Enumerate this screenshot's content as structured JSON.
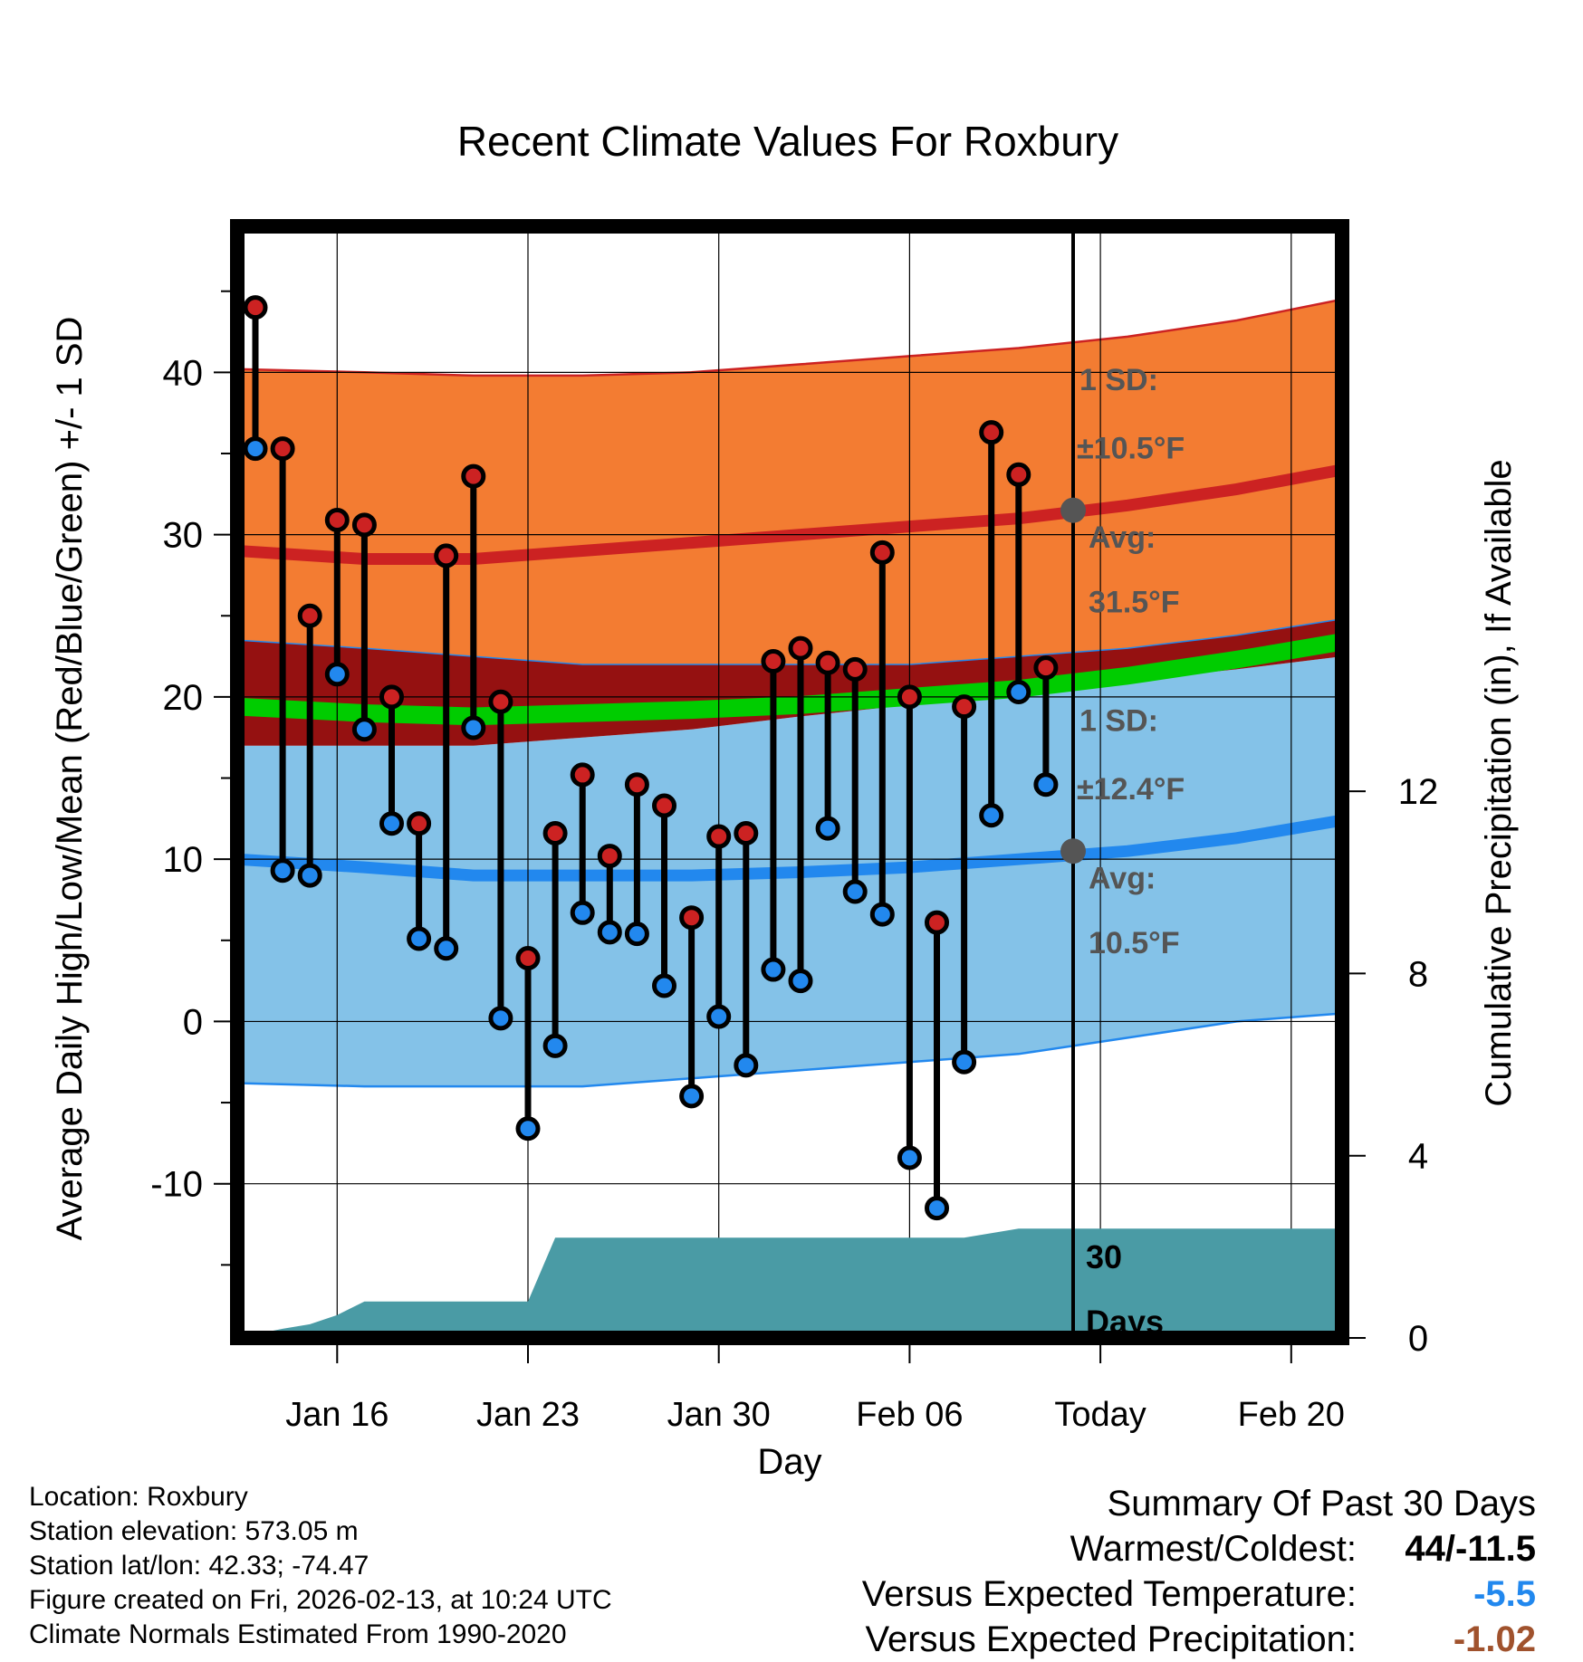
{
  "chart_data": {
    "type": "line",
    "title": "Recent Climate Values For Roxbury",
    "xlabel": "Day",
    "ylabel": "Average Daily High/Low/Mean (Red/Blue/Green) +/- 1 SD",
    "y2label": "Cumulative Precipitation (in), If Available",
    "ylim": [
      -19.5,
      49
    ],
    "y2lim": [
      0,
      24.4
    ],
    "xlim": [
      0,
      41
    ],
    "today_index": 30,
    "x_ticks": [
      {
        "day": 3,
        "label": "Jan 16"
      },
      {
        "day": 10,
        "label": "Jan 23"
      },
      {
        "day": 17,
        "label": "Jan 30"
      },
      {
        "day": 24,
        "label": "Feb 06"
      },
      {
        "day": 31,
        "label": "Today"
      },
      {
        "day": 38,
        "label": "Feb 20"
      }
    ],
    "y_ticks": [
      -10,
      0,
      10,
      20,
      30,
      40
    ],
    "y2_ticks": [
      0,
      4,
      8,
      12
    ],
    "normals_days": [
      0,
      4,
      8,
      12,
      16,
      20,
      24,
      28,
      32,
      36,
      41
    ],
    "normal_high": [
      29.0,
      28.5,
      28.5,
      29.0,
      29.5,
      30.0,
      30.5,
      31.0,
      31.8,
      32.8,
      34.0
    ],
    "normal_high_plus_sd": [
      40.2,
      40.0,
      39.8,
      39.8,
      40.0,
      40.5,
      41.0,
      41.5,
      42.2,
      43.2,
      44.5
    ],
    "normal_high_minus_sd": [
      23.5,
      23.0,
      22.5,
      22.0,
      22.0,
      22.0,
      22.0,
      22.5,
      23.0,
      23.8,
      24.8
    ],
    "normal_mean": [
      19.4,
      19.0,
      18.8,
      19.0,
      19.2,
      19.5,
      20.0,
      20.5,
      21.3,
      22.3,
      23.4
    ],
    "normal_low": [
      10.0,
      9.5,
      9.0,
      9.0,
      9.0,
      9.2,
      9.5,
      10.0,
      10.5,
      11.3,
      12.4
    ],
    "normal_low_plus_sd": [
      17.0,
      17.0,
      17.0,
      17.5,
      18.0,
      18.8,
      19.5,
      20.2,
      21.0,
      21.7,
      22.5
    ],
    "normal_low_minus_sd": [
      -3.8,
      -4.0,
      -4.0,
      -4.0,
      -3.5,
      -3.0,
      -2.5,
      -2.0,
      -1.0,
      0.0,
      0.5
    ],
    "series": [
      {
        "name": "Daily High",
        "color": "#cc2222",
        "values": [
          44.0,
          35.3,
          25.0,
          30.9,
          30.6,
          20.0,
          12.2,
          28.7,
          33.6,
          19.7,
          3.9,
          11.6,
          15.2,
          10.2,
          14.6,
          13.3,
          6.4,
          11.4,
          11.6,
          22.2,
          23.0,
          22.1,
          21.7,
          28.9,
          20.0,
          6.1,
          19.4,
          36.3,
          33.7,
          21.8
        ]
      },
      {
        "name": "Daily Low",
        "color": "#2288ee",
        "values": [
          35.3,
          9.3,
          9.0,
          21.4,
          18.0,
          12.2,
          5.1,
          4.5,
          18.1,
          0.2,
          -6.6,
          -1.5,
          6.7,
          5.5,
          5.4,
          2.2,
          -4.6,
          0.3,
          -2.7,
          3.2,
          2.5,
          11.9,
          8.0,
          6.6,
          -8.4,
          -11.5,
          -2.5,
          12.7,
          20.3,
          14.6
        ]
      }
    ],
    "precip_cumulative": [
      0.0,
      0.2,
      0.3,
      0.5,
      0.8,
      0.8,
      0.8,
      0.8,
      0.8,
      0.8,
      0.8,
      2.2,
      2.2,
      2.2,
      2.2,
      2.2,
      2.2,
      2.2,
      2.2,
      2.2,
      2.2,
      2.2,
      2.2,
      2.2,
      2.2,
      2.2,
      2.2,
      2.3,
      2.4,
      2.4,
      2.4
    ],
    "annotations": {
      "high_sd_line1": "1 SD:",
      "high_sd_line2": "±10.5°F",
      "high_avg_line1": "Avg:",
      "high_avg_line2": "31.5°F",
      "low_sd_line1": "1 SD:",
      "low_sd_line2": "±12.4°F",
      "low_avg_line1": "Avg:",
      "low_avg_line2": "10.5°F",
      "precip_line1": "30",
      "precip_line2": "Days"
    },
    "today_high_avg": 31.5,
    "today_low_avg": 10.5
  },
  "colors": {
    "high_band": "#f37c32",
    "high_line": "#cc2222",
    "low_band": "#84c2e8",
    "low_line": "#2288ee",
    "overlap_band": "#951111",
    "mean_band": "#00cc00",
    "precip": "#4a9ba5",
    "annotation": "#555555",
    "cold_value": "#2288ee",
    "warm_value": "#a0522d"
  },
  "meta": {
    "location": "Location: Roxbury",
    "elevation": "Station elevation: 573.05 m",
    "latlon": "Station lat/lon: 42.33; -74.47",
    "created": "Figure created on Fri, 2026-02-13, at 10:24 UTC",
    "normals": "Climate Normals Estimated From 1990-2020"
  },
  "summary": {
    "title": "Summary Of Past 30 Days",
    "warm_cold_label": "Warmest/Coldest:",
    "warm_cold_value": "44/-11.5",
    "temp_label": "Versus Expected Temperature:",
    "temp_value": "-5.5",
    "precip_label": "Versus Expected Precipitation:",
    "precip_value": "-1.02"
  }
}
